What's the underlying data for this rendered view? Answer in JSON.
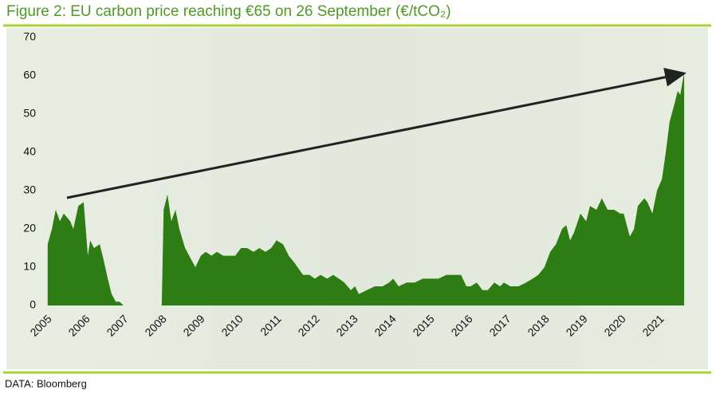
{
  "chart_data": {
    "type": "area",
    "title": "Figure 2: EU carbon price reaching €65 on 26 September (€/tCO₂)",
    "source": "DATA: Bloomberg",
    "color": "#2e7d14",
    "x": [
      2005.1,
      2005.21,
      2005.31,
      2005.42,
      2005.52,
      2005.69,
      2005.77,
      2005.9,
      2006.04,
      2006.15,
      2006.21,
      2006.31,
      2006.46,
      2006.56,
      2006.67,
      2006.77,
      2006.88,
      2006.98,
      2007.08,
      2007.19,
      2008.02,
      2008.08,
      2008.13,
      2008.23,
      2008.33,
      2008.44,
      2008.54,
      2008.69,
      2008.85,
      2008.96,
      2009.1,
      2009.23,
      2009.38,
      2009.52,
      2009.69,
      2009.83,
      2010.0,
      2010.15,
      2010.31,
      2010.48,
      2010.63,
      2010.79,
      2010.94,
      2011.08,
      2011.25,
      2011.4,
      2011.56,
      2011.77,
      2011.94,
      2012.08,
      2012.23,
      2012.4,
      2012.56,
      2012.71,
      2012.85,
      2013.02,
      2013.13,
      2013.23,
      2013.44,
      2013.65,
      2013.85,
      2014.02,
      2014.13,
      2014.27,
      2014.48,
      2014.69,
      2014.9,
      2015.1,
      2015.31,
      2015.52,
      2015.73,
      2015.9,
      2016.04,
      2016.15,
      2016.31,
      2016.46,
      2016.6,
      2016.77,
      2016.92,
      2017.02,
      2017.19,
      2017.4,
      2017.6,
      2017.77,
      2017.92,
      2018.08,
      2018.23,
      2018.38,
      2018.54,
      2018.65,
      2018.75,
      2018.85,
      2019.02,
      2019.17,
      2019.27,
      2019.44,
      2019.58,
      2019.73,
      2019.9,
      2020.06,
      2020.15,
      2020.31,
      2020.42,
      2020.52,
      2020.69,
      2020.77,
      2020.9,
      2021.02,
      2021.15,
      2021.25,
      2021.35,
      2021.46,
      2021.56,
      2021.63,
      2021.73
    ],
    "values": [
      16,
      20,
      25,
      22,
      24,
      22,
      20,
      26,
      27,
      13,
      17,
      15,
      16,
      12,
      7,
      3,
      1,
      1,
      0,
      0,
      0,
      0,
      25,
      29,
      22,
      25,
      20,
      15,
      12,
      10,
      13,
      14,
      13,
      14,
      13,
      13,
      13,
      15,
      15,
      14,
      15,
      14,
      15,
      17,
      16,
      13,
      11,
      8,
      8,
      7,
      8,
      7,
      8,
      7,
      6,
      4,
      5,
      3,
      4,
      5,
      5,
      6,
      7,
      5,
      6,
      6,
      7,
      7,
      7,
      8,
      8,
      8,
      5,
      5,
      6,
      4,
      4,
      6,
      5,
      6,
      5,
      5,
      6,
      7,
      8,
      10,
      14,
      16,
      20,
      21,
      17,
      19,
      24,
      22,
      26,
      25,
      28,
      25,
      25,
      24,
      24,
      18,
      20,
      26,
      28,
      27,
      24,
      30,
      33,
      40,
      48,
      52,
      56,
      55,
      61
    ],
    "xlim": [
      2005,
      2021.75
    ],
    "xticks": [
      2005,
      2006,
      2007,
      2008,
      2009,
      2010,
      2011,
      2012,
      2013,
      2014,
      2015,
      2016,
      2017,
      2018,
      2019,
      2020,
      2021
    ],
    "ylim": [
      0,
      70
    ],
    "yticks": [
      0,
      10,
      20,
      30,
      40,
      50,
      60,
      70
    ]
  }
}
